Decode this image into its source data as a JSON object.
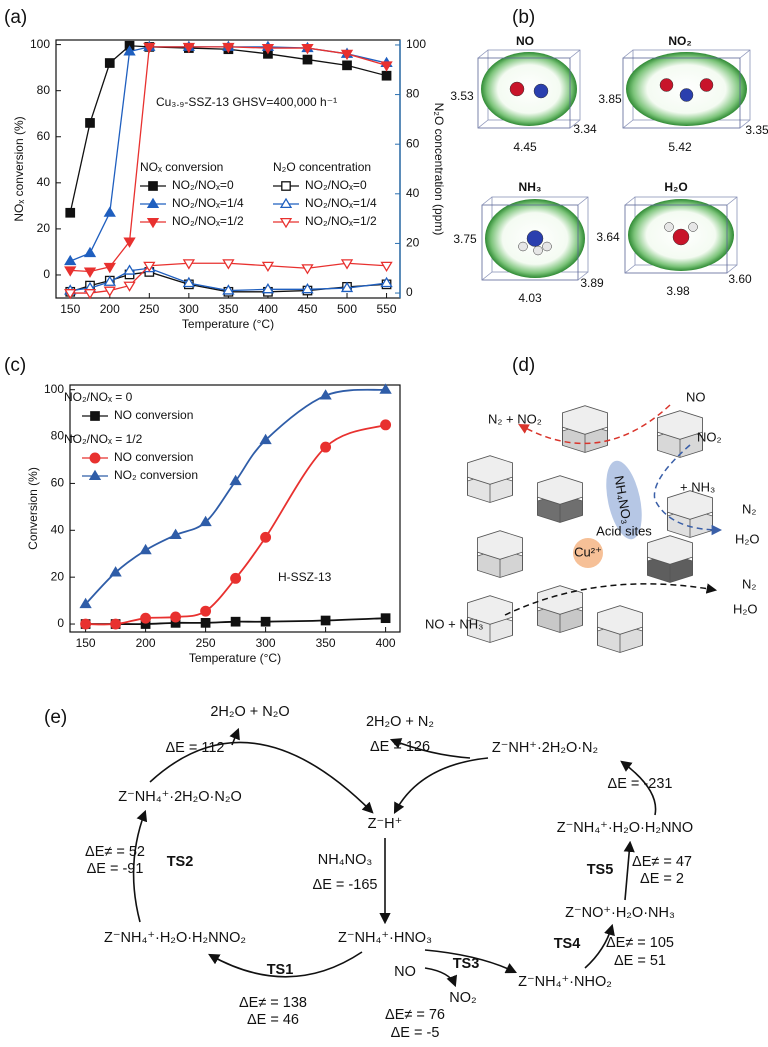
{
  "chart_data": [
    {
      "type": "line",
      "panel_label": "(a)",
      "annotation": "Cu₃.₉-SSZ-13 GHSV=400,000 h⁻¹",
      "x_label": "Temperature (°C)",
      "y_label": "NOₓ conversion (%)",
      "y2_label": "N₂O concentration (ppm)",
      "y2_color": "#2a6fb0",
      "legend_titles": [
        "NOₓ conversion",
        "N₂O concentration"
      ],
      "legend": "center right",
      "x": [
        150,
        175,
        200,
        225,
        250,
        300,
        350,
        400,
        450,
        500,
        550
      ],
      "xlim": [
        132,
        567
      ],
      "xticks": [
        150,
        200,
        250,
        300,
        350,
        400,
        450,
        500,
        550
      ],
      "ylim": [
        -10,
        102
      ],
      "yticks": [
        0,
        20,
        40,
        60,
        80,
        100
      ],
      "y2lim": [
        -2,
        102
      ],
      "y2ticks": [
        0,
        20,
        40,
        60,
        80,
        100
      ],
      "series": [
        {
          "name": "NO₂/NOₓ=0",
          "color": "#111111",
          "marker": "square",
          "filled": true,
          "values": [
            27,
            66,
            92,
            99.5,
            99,
            98.5,
            98,
            96,
            93.5,
            91,
            86.5
          ]
        },
        {
          "name": "NO₂/NOₓ=1/4",
          "color": "#1f5fbf",
          "marker": "triangle-up",
          "filled": true,
          "values": [
            6,
            9.5,
            27,
            97,
            99,
            99,
            99,
            99,
            98.5,
            96,
            92
          ]
        },
        {
          "name": "NO₂/NOₓ=1/2",
          "color": "#e8312f",
          "marker": "triangle-down",
          "filled": true,
          "values": [
            2,
            1.5,
            3.5,
            14.5,
            99,
            99,
            99,
            98.5,
            98.5,
            96,
            91
          ]
        },
        {
          "name": "NO₂/NOₓ=0",
          "color": "#111111",
          "marker": "square",
          "filled": false,
          "axis": "y2",
          "values": [
            0.5,
            3,
            5,
            7.5,
            8.5,
            3.5,
            0.5,
            0.5,
            1,
            2.5,
            3.5
          ]
        },
        {
          "name": "NO₂/NOₓ=1/4",
          "color": "#1f5fbf",
          "marker": "triangle-up",
          "filled": false,
          "axis": "y2",
          "values": [
            1,
            2,
            4.5,
            9,
            10,
            4,
            1,
            1.5,
            1.5,
            2,
            4
          ]
        },
        {
          "name": "NO₂/NOₓ=1/2",
          "color": "#e8312f",
          "marker": "triangle-down",
          "filled": false,
          "axis": "y2",
          "values": [
            0,
            0,
            1,
            3,
            11,
            12,
            12,
            11,
            10,
            12,
            11
          ]
        }
      ]
    },
    {
      "type": "line",
      "panel_label": "(c)",
      "annotation": "H-SSZ-13",
      "smooth": true,
      "x_label": "Temperature (°C)",
      "y_label": "Conversion (%)",
      "legend_titles": [
        "NO₂/NOₓ = 0",
        "NO₂/NOₓ = 1/2"
      ],
      "legend": "upper left",
      "x": [
        150,
        175,
        200,
        225,
        250,
        275,
        300,
        350,
        400
      ],
      "xlim": [
        137,
        412
      ],
      "xticks": [
        150,
        200,
        250,
        300,
        350,
        400
      ],
      "ylim": [
        -3.4,
        102
      ],
      "yticks": [
        0,
        20,
        40,
        60,
        80,
        100
      ],
      "series": [
        {
          "name": "NO conversion",
          "color": "#111111",
          "marker": "square",
          "filled": true,
          "values": [
            0,
            0,
            0,
            0.5,
            0.5,
            1,
            1,
            1.5,
            2.5
          ]
        },
        {
          "name": "NO conversion",
          "color": "#e8312f",
          "marker": "circle",
          "filled": true,
          "values": [
            0,
            0,
            2.5,
            3,
            5.5,
            19.5,
            37,
            75.5,
            85
          ]
        },
        {
          "name": "NO₂ conversion",
          "color": "#2f5da8",
          "marker": "triangle-up",
          "filled": true,
          "values": [
            8.5,
            22,
            31.5,
            38,
            43.5,
            61,
            78.5,
            97.5,
            100
          ]
        }
      ]
    }
  ],
  "panel_b": {
    "label": "(b)",
    "molecules": [
      {
        "name": "NO",
        "height": "3.53",
        "depth": "3.34",
        "width": "4.45"
      },
      {
        "name": "NO₂",
        "height": "3.85",
        "depth": "3.35",
        "width": "5.42"
      },
      {
        "name": "NH₃",
        "height": "3.75",
        "depth": "3.89",
        "width": "4.03"
      },
      {
        "name": "H₂O",
        "height": "3.64",
        "depth": "3.60",
        "width": "3.98"
      }
    ]
  },
  "panel_d": {
    "label": "(d)",
    "labels": [
      "NO",
      "N₂ + NO₂",
      "NO₂",
      "NH₄NO₃",
      "+ NH₃",
      "Acid sites",
      "N₂",
      "H₂O",
      "Cu²⁺",
      "N₂",
      "H₂O",
      "NO + NH₃"
    ]
  },
  "panel_e": {
    "label": "(e)",
    "labels": [
      "2H₂O + N₂O",
      "ΔE = 112",
      "2H₂O + N₂",
      "ΔE = 126",
      "Z⁻NH⁺·2H₂O·N₂",
      "ΔE = -231",
      "Z⁻NH₄⁺·2H₂O·N₂O",
      "Z⁻H⁺",
      "Z⁻NH₄⁺·H₂O·H₂NNO",
      "ΔE≠ = 52",
      "ΔE = -91",
      "TS2",
      "NH₄NO₃",
      "ΔE = -165",
      "TS5",
      "ΔE≠ = 47",
      "ΔE = 2",
      "Z⁻NO⁺·H₂O·NH₃",
      "Z⁻NH₄⁺·H₂O·H₂NNO₂",
      "Z⁻NH₄⁺·HNO₃",
      "TS4",
      "ΔE≠ = 105",
      "ΔE = 51",
      "TS3",
      "NO",
      "NO₂",
      "Z⁻NH₄⁺·NHO₂",
      "TS1",
      "ΔE≠ = 138",
      "ΔE = 46",
      "ΔE≠ = 76",
      "ΔE = -5"
    ]
  }
}
